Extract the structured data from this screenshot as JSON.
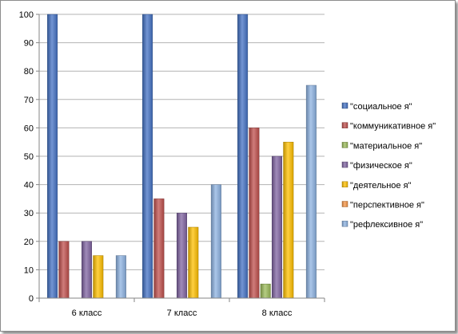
{
  "chart_data": {
    "type": "bar",
    "categories": [
      "6 класс",
      "7 класс",
      "8 класс"
    ],
    "series": [
      {
        "name": "\"социальное я\"",
        "values": [
          100,
          100,
          100
        ],
        "color": "#4472C4"
      },
      {
        "name": "\"коммуникативное я\"",
        "values": [
          20,
          35,
          60
        ],
        "color": "#C0504D"
      },
      {
        "name": "\"материальное я\"",
        "values": [
          0,
          0,
          5
        ],
        "color": "#9BBB59"
      },
      {
        "name": "\"физическое я\"",
        "values": [
          20,
          30,
          50
        ],
        "color": "#8064A2"
      },
      {
        "name": "\"деятельное я\"",
        "values": [
          15,
          25,
          55
        ],
        "color": "#FFC000"
      },
      {
        "name": "\"перспективное я\"",
        "values": [
          0,
          0,
          0
        ],
        "color": "#F79646"
      },
      {
        "name": "\"рефлексивное я\"",
        "values": [
          15,
          40,
          75
        ],
        "color": "#8DB3E2"
      }
    ],
    "title": "",
    "xlabel": "",
    "ylabel": "",
    "ylim": [
      0,
      100
    ],
    "yticks": [
      0,
      10,
      20,
      30,
      40,
      50,
      60,
      70,
      80,
      90,
      100
    ],
    "grid": true,
    "legend_position": "right"
  }
}
